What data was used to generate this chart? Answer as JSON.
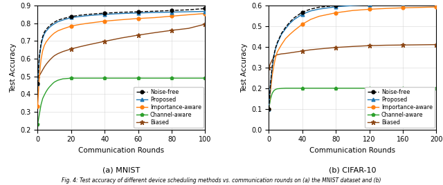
{
  "mnist": {
    "title": "(a) MNIST",
    "xlabel": "Communication Rounds",
    "ylabel": "Test Accuracy",
    "xlim": [
      0,
      100
    ],
    "ylim": [
      0.2,
      0.9
    ],
    "xticks": [
      0,
      20,
      40,
      60,
      80,
      100
    ],
    "yticks": [
      0.2,
      0.3,
      0.4,
      0.5,
      0.6,
      0.7,
      0.8,
      0.9
    ],
    "noise_free_x": [
      0,
      1,
      2,
      3,
      4,
      5,
      6,
      7,
      8,
      9,
      10,
      12,
      15,
      20,
      25,
      30,
      35,
      40,
      50,
      60,
      70,
      80,
      90,
      100
    ],
    "noise_free_y": [
      0.46,
      0.615,
      0.685,
      0.725,
      0.75,
      0.765,
      0.775,
      0.785,
      0.793,
      0.8,
      0.806,
      0.817,
      0.826,
      0.838,
      0.845,
      0.85,
      0.854,
      0.857,
      0.862,
      0.865,
      0.868,
      0.872,
      0.876,
      0.883
    ],
    "proposed_x": [
      0,
      1,
      2,
      3,
      4,
      5,
      6,
      7,
      8,
      9,
      10,
      12,
      15,
      20,
      25,
      30,
      35,
      40,
      50,
      60,
      70,
      80,
      90,
      100
    ],
    "proposed_y": [
      0.46,
      0.605,
      0.675,
      0.715,
      0.74,
      0.755,
      0.765,
      0.776,
      0.784,
      0.791,
      0.797,
      0.808,
      0.818,
      0.832,
      0.838,
      0.843,
      0.847,
      0.85,
      0.855,
      0.858,
      0.861,
      0.863,
      0.865,
      0.867
    ],
    "importance_x": [
      0,
      1,
      2,
      3,
      4,
      5,
      6,
      7,
      8,
      9,
      10,
      12,
      15,
      20,
      25,
      30,
      35,
      40,
      50,
      60,
      70,
      80,
      90,
      100
    ],
    "importance_y": [
      0.33,
      0.5,
      0.595,
      0.645,
      0.675,
      0.693,
      0.706,
      0.718,
      0.728,
      0.737,
      0.745,
      0.757,
      0.768,
      0.784,
      0.793,
      0.8,
      0.806,
      0.812,
      0.82,
      0.827,
      0.832,
      0.84,
      0.848,
      0.855
    ],
    "channel_x": [
      0,
      1,
      2,
      3,
      4,
      5,
      6,
      7,
      8,
      9,
      10,
      12,
      15,
      20,
      25,
      30,
      35,
      40,
      50,
      60,
      70,
      80,
      90,
      100
    ],
    "channel_y": [
      0.23,
      0.285,
      0.34,
      0.375,
      0.395,
      0.413,
      0.428,
      0.44,
      0.45,
      0.46,
      0.468,
      0.478,
      0.486,
      0.49,
      0.49,
      0.49,
      0.49,
      0.49,
      0.49,
      0.49,
      0.49,
      0.49,
      0.49,
      0.49
    ],
    "biased_x": [
      0,
      1,
      2,
      3,
      4,
      5,
      6,
      7,
      8,
      9,
      10,
      12,
      15,
      20,
      25,
      30,
      35,
      40,
      50,
      60,
      70,
      80,
      90,
      100
    ],
    "biased_y": [
      0.49,
      0.503,
      0.52,
      0.537,
      0.553,
      0.567,
      0.579,
      0.59,
      0.6,
      0.609,
      0.617,
      0.628,
      0.64,
      0.655,
      0.667,
      0.678,
      0.688,
      0.698,
      0.717,
      0.733,
      0.747,
      0.76,
      0.771,
      0.795
    ],
    "marker_every_noise_free": [
      0,
      20,
      40,
      60,
      80,
      100
    ],
    "marker_every_proposed": [
      0,
      20,
      40,
      60,
      80,
      100
    ],
    "marker_every_importance": [
      0,
      20,
      40,
      60,
      80,
      100
    ],
    "marker_every_channel": [
      0,
      20,
      40,
      60,
      80,
      100
    ],
    "marker_every_biased": [
      0,
      20,
      40,
      60,
      80,
      100
    ]
  },
  "cifar": {
    "title": "(b) CIFAR-10",
    "xlabel": "Communication Rounds",
    "ylabel": "Test Accuracy",
    "xlim": [
      0,
      200
    ],
    "ylim": [
      0.0,
      0.6
    ],
    "xticks": [
      0,
      40,
      80,
      120,
      160,
      200
    ],
    "yticks": [
      0.0,
      0.1,
      0.2,
      0.3,
      0.4,
      0.5,
      0.6
    ],
    "noise_free_x": [
      0,
      2,
      4,
      6,
      8,
      10,
      15,
      20,
      25,
      30,
      40,
      50,
      60,
      80,
      100,
      120,
      140,
      160,
      180,
      200
    ],
    "noise_free_y": [
      0.1,
      0.225,
      0.305,
      0.36,
      0.395,
      0.42,
      0.465,
      0.495,
      0.52,
      0.54,
      0.568,
      0.583,
      0.592,
      0.6,
      0.606,
      0.61,
      0.613,
      0.616,
      0.618,
      0.62
    ],
    "proposed_x": [
      0,
      2,
      4,
      6,
      8,
      10,
      15,
      20,
      25,
      30,
      40,
      50,
      60,
      80,
      100,
      120,
      140,
      160,
      180,
      200
    ],
    "proposed_y": [
      0.1,
      0.22,
      0.3,
      0.355,
      0.39,
      0.415,
      0.46,
      0.488,
      0.513,
      0.532,
      0.558,
      0.574,
      0.583,
      0.594,
      0.6,
      0.604,
      0.607,
      0.609,
      0.612,
      0.614
    ],
    "importance_x": [
      0,
      2,
      4,
      6,
      8,
      10,
      15,
      20,
      25,
      30,
      40,
      50,
      60,
      80,
      100,
      120,
      140,
      160,
      180,
      200
    ],
    "importance_y": [
      0.1,
      0.185,
      0.262,
      0.31,
      0.348,
      0.375,
      0.41,
      0.44,
      0.46,
      0.478,
      0.51,
      0.533,
      0.548,
      0.565,
      0.576,
      0.582,
      0.586,
      0.589,
      0.591,
      0.593
    ],
    "channel_x": [
      0,
      2,
      4,
      6,
      8,
      10,
      15,
      20,
      25,
      30,
      40,
      50,
      60,
      80,
      100,
      120,
      140,
      160,
      180,
      200
    ],
    "channel_y": [
      0.1,
      0.148,
      0.175,
      0.188,
      0.194,
      0.197,
      0.199,
      0.2,
      0.2,
      0.2,
      0.2,
      0.2,
      0.2,
      0.2,
      0.2,
      0.2,
      0.2,
      0.2,
      0.2,
      0.2
    ],
    "biased_x": [
      0,
      2,
      4,
      6,
      8,
      10,
      15,
      20,
      25,
      30,
      40,
      50,
      60,
      80,
      100,
      120,
      140,
      160,
      180,
      200
    ],
    "biased_y": [
      0.3,
      0.32,
      0.337,
      0.35,
      0.357,
      0.362,
      0.366,
      0.368,
      0.371,
      0.374,
      0.38,
      0.386,
      0.39,
      0.397,
      0.402,
      0.406,
      0.408,
      0.409,
      0.41,
      0.411
    ],
    "marker_every_noise_free": [
      0,
      40,
      80,
      120,
      160,
      200
    ],
    "marker_every_proposed": [
      0,
      40,
      80,
      120,
      160,
      200
    ],
    "marker_every_importance": [
      0,
      40,
      80,
      120,
      160,
      200
    ],
    "marker_every_channel": [
      0,
      40,
      80,
      120,
      160,
      200
    ],
    "marker_every_biased": [
      0,
      40,
      80,
      120,
      160,
      200
    ]
  },
  "colors": {
    "noise_free": "#000000",
    "proposed": "#1f77b4",
    "importance": "#ff7f0e",
    "channel": "#2ca02c",
    "biased": "#8b4513"
  },
  "caption": "Fig. 4: Test accuracy of different device scheduling methods vs. communication rounds on (a) the MNIST dataset and (b)"
}
